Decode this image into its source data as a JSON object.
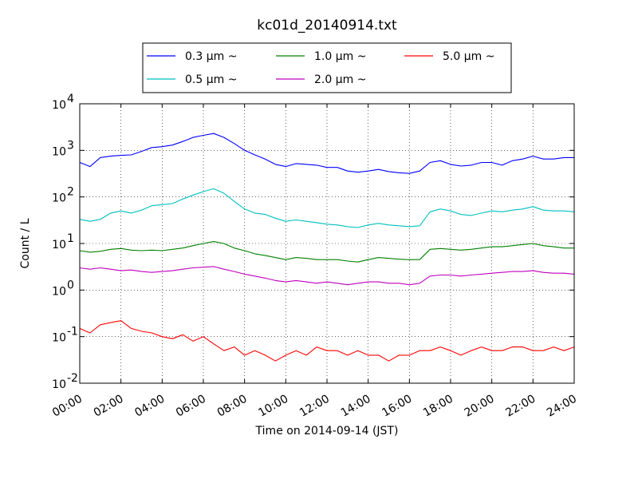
{
  "chart_data": {
    "type": "line",
    "title": "kc01d_20140914.txt",
    "xlabel": "Time on 2014-09-14 (JST)",
    "ylabel": "Count / L",
    "x_unit": "hours",
    "xlim": [
      0,
      24
    ],
    "ylim": [
      0.01,
      10000
    ],
    "y_scale": "log",
    "grid": true,
    "legend_position": "top-center, above plot",
    "x_ticks": [
      {
        "value": 0,
        "label": "00:00"
      },
      {
        "value": 2,
        "label": "02:00"
      },
      {
        "value": 4,
        "label": "04:00"
      },
      {
        "value": 6,
        "label": "06:00"
      },
      {
        "value": 8,
        "label": "08:00"
      },
      {
        "value": 10,
        "label": "10:00"
      },
      {
        "value": 12,
        "label": "12:00"
      },
      {
        "value": 14,
        "label": "14:00"
      },
      {
        "value": 16,
        "label": "16:00"
      },
      {
        "value": 18,
        "label": "18:00"
      },
      {
        "value": 20,
        "label": "20:00"
      },
      {
        "value": 22,
        "label": "22:00"
      },
      {
        "value": 24,
        "label": "24:00"
      }
    ],
    "y_ticks": [
      {
        "value": 0.01,
        "base": "10",
        "exp": "-2"
      },
      {
        "value": 0.1,
        "base": "10",
        "exp": "-1"
      },
      {
        "value": 1,
        "base": "10",
        "exp": "0"
      },
      {
        "value": 10,
        "base": "10",
        "exp": "1"
      },
      {
        "value": 100,
        "base": "10",
        "exp": "2"
      },
      {
        "value": 1000,
        "base": "10",
        "exp": "3"
      },
      {
        "value": 10000,
        "base": "10",
        "exp": "4"
      }
    ],
    "x": [
      0,
      0.5,
      1,
      1.5,
      2,
      2.5,
      3,
      3.5,
      4,
      4.5,
      5,
      5.5,
      6,
      6.5,
      7,
      7.5,
      8,
      8.5,
      9,
      9.5,
      10,
      10.5,
      11,
      11.5,
      12,
      12.5,
      13,
      13.5,
      14,
      14.5,
      15,
      15.5,
      16,
      16.5,
      17,
      17.5,
      18,
      18.5,
      19,
      19.5,
      20,
      20.5,
      21,
      21.5,
      22,
      22.5,
      23,
      23.5,
      24
    ],
    "series": [
      {
        "name": "0.3 μm ~",
        "color": "#0000ff",
        "values": [
          550,
          450,
          700,
          750,
          780,
          800,
          950,
          1150,
          1200,
          1300,
          1550,
          1900,
          2100,
          2300,
          1900,
          1400,
          1000,
          800,
          650,
          500,
          450,
          520,
          500,
          480,
          430,
          430,
          360,
          340,
          360,
          390,
          350,
          330,
          320,
          360,
          550,
          600,
          500,
          460,
          480,
          550,
          550,
          480,
          600,
          650,
          750,
          650,
          650,
          700,
          700
        ]
      },
      {
        "name": "0.5 μm ~",
        "color": "#00bfbf",
        "values": [
          33,
          30,
          33,
          45,
          50,
          45,
          52,
          65,
          68,
          72,
          90,
          110,
          130,
          150,
          120,
          80,
          55,
          45,
          42,
          35,
          30,
          32,
          30,
          28,
          26,
          25,
          23,
          22,
          25,
          27,
          25,
          24,
          23,
          24,
          48,
          55,
          50,
          42,
          40,
          45,
          50,
          48,
          52,
          55,
          62,
          52,
          50,
          50,
          48
        ]
      },
      {
        "name": "1.0 μm ~",
        "color": "#008000",
        "values": [
          7,
          6.5,
          6.8,
          7.5,
          7.8,
          7.2,
          7,
          7.2,
          7,
          7.5,
          8,
          9,
          10,
          11,
          10,
          8,
          7,
          6,
          5.5,
          5,
          4.5,
          5,
          4.8,
          4.5,
          4.5,
          4.5,
          4.2,
          4,
          4.5,
          5,
          4.8,
          4.6,
          4.5,
          4.5,
          7.5,
          7.8,
          7.5,
          7.2,
          7.5,
          8,
          8.5,
          8.5,
          9,
          9.5,
          10,
          9,
          8.5,
          8,
          8
        ]
      },
      {
        "name": "2.0 μm ~",
        "color": "#bf00bf",
        "values": [
          3,
          2.8,
          3,
          2.8,
          2.6,
          2.7,
          2.5,
          2.4,
          2.5,
          2.6,
          2.8,
          3,
          3.1,
          3.2,
          2.8,
          2.5,
          2.2,
          2,
          1.8,
          1.6,
          1.5,
          1.6,
          1.5,
          1.4,
          1.5,
          1.4,
          1.3,
          1.4,
          1.5,
          1.5,
          1.4,
          1.4,
          1.3,
          1.4,
          2,
          2.1,
          2.1,
          2,
          2.1,
          2.2,
          2.3,
          2.4,
          2.5,
          2.5,
          2.6,
          2.4,
          2.3,
          2.3,
          2.2
        ]
      },
      {
        "name": "5.0 μm ~",
        "color": "#ff0000",
        "values": [
          0.15,
          0.12,
          0.18,
          0.2,
          0.22,
          0.15,
          0.13,
          0.12,
          0.1,
          0.09,
          0.11,
          0.08,
          0.1,
          0.07,
          0.05,
          0.06,
          0.04,
          0.05,
          0.04,
          0.03,
          0.04,
          0.05,
          0.04,
          0.06,
          0.05,
          0.05,
          0.04,
          0.05,
          0.04,
          0.04,
          0.03,
          0.04,
          0.04,
          0.05,
          0.05,
          0.06,
          0.05,
          0.04,
          0.05,
          0.06,
          0.05,
          0.05,
          0.06,
          0.06,
          0.05,
          0.05,
          0.06,
          0.05,
          0.06
        ]
      }
    ]
  }
}
